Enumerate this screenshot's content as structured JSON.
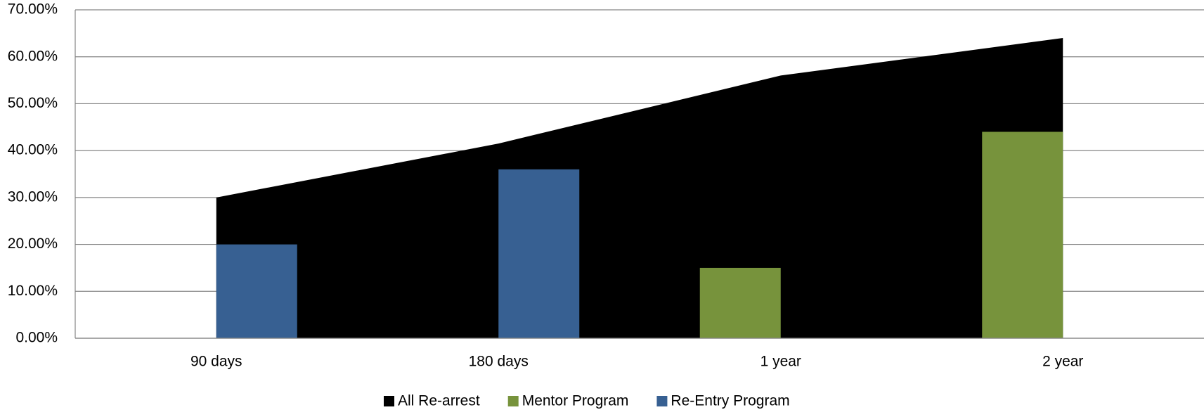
{
  "chart_data": {
    "type": "combo",
    "categories": [
      "90 days",
      "180 days",
      "1 year",
      "2 year"
    ],
    "series": [
      {
        "name": "All Re-arrest",
        "type": "area",
        "color": "#000000",
        "values": [
          30,
          41.5,
          56,
          64
        ]
      },
      {
        "name": "Mentor Program",
        "type": "bar",
        "color": "#77933c",
        "values": [
          null,
          null,
          15,
          44
        ]
      },
      {
        "name": "Re-Entry Program",
        "type": "bar",
        "color": "#376092",
        "values": [
          20,
          36,
          null,
          null
        ]
      }
    ],
    "ylim": [
      0,
      70
    ],
    "yticks": [
      {
        "value": 0,
        "label": "0.00%"
      },
      {
        "value": 10,
        "label": "10.00%"
      },
      {
        "value": 20,
        "label": "20.00%"
      },
      {
        "value": 30,
        "label": "30.00%"
      },
      {
        "value": 40,
        "label": "40.00%"
      },
      {
        "value": 50,
        "label": "50.00%"
      },
      {
        "value": 60,
        "label": "60.00%"
      },
      {
        "value": 70,
        "label": "70.00%"
      }
    ],
    "grid": true,
    "legend": "bottom"
  }
}
